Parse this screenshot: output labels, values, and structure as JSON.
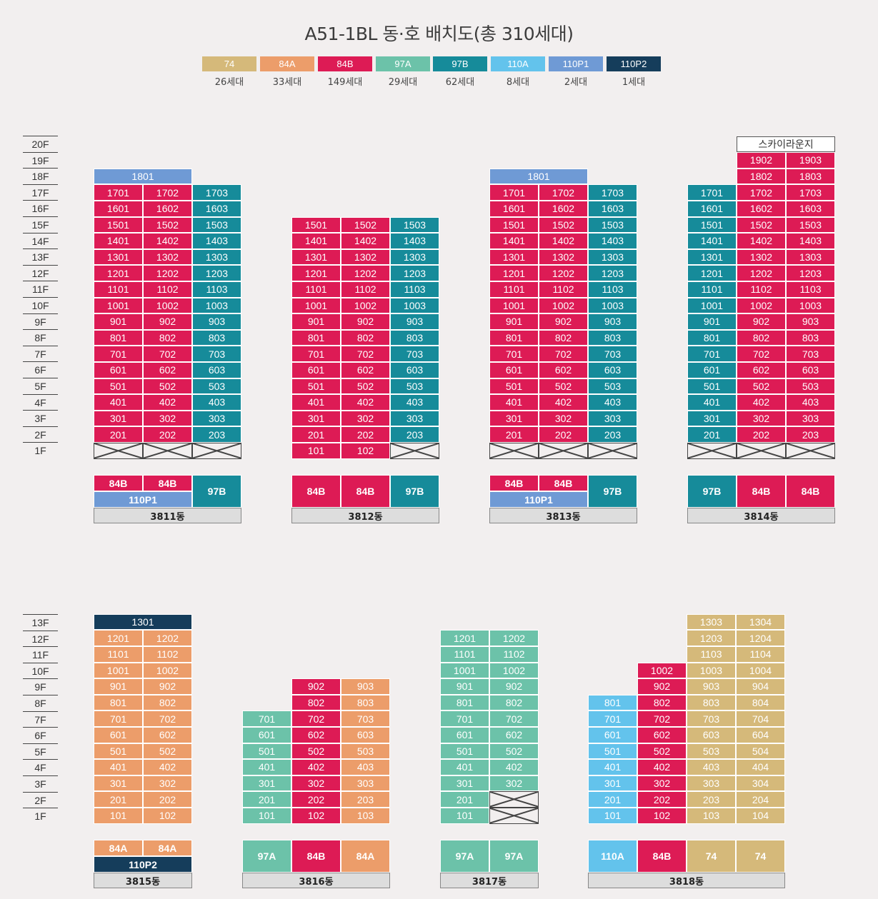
{
  "title": "A51-1BL 동·호 배치도(총 310세대)",
  "colors": {
    "74": "#d5b97a",
    "84A": "#ec9d6a",
    "84B": "#dd1b55",
    "97A": "#6cc2a9",
    "97B": "#168b9a",
    "110A": "#63c3ec",
    "110P1": "#6f9ad5",
    "110P2": "#153d5b"
  },
  "legend": [
    {
      "type": "74",
      "count": "26세대"
    },
    {
      "type": "84A",
      "count": "33세대"
    },
    {
      "type": "84B",
      "count": "149세대"
    },
    {
      "type": "97A",
      "count": "29세대"
    },
    {
      "type": "97B",
      "count": "62세대"
    },
    {
      "type": "110A",
      "count": "8세대"
    },
    {
      "type": "110P1",
      "count": "2세대"
    },
    {
      "type": "110P2",
      "count": "1세대"
    }
  ],
  "floor_labels_top": [
    "20F",
    "19F",
    "18F",
    "17F",
    "16F",
    "15F",
    "14F",
    "13F",
    "12F",
    "11F",
    "10F",
    "9F",
    "8F",
    "7F",
    "6F",
    "5F",
    "4F",
    "3F",
    "2F",
    "1F"
  ],
  "floor_labels_bottom": [
    "13F",
    "12F",
    "11F",
    "10F",
    "9F",
    "8F",
    "7F",
    "6F",
    "5F",
    "4F",
    "3F",
    "2F",
    "1F"
  ],
  "buildings": [
    {
      "name": "3811동",
      "row": "top",
      "columns": [
        {
          "line": "01",
          "type": "84B",
          "floors": [
            1,
            17
          ],
          "empty": [
            1
          ]
        },
        {
          "line": "02",
          "type": "84B",
          "floors": [
            1,
            17
          ],
          "empty": [
            1
          ]
        },
        {
          "line": "03",
          "type": "97B",
          "floors": [
            1,
            17
          ],
          "empty": [
            1
          ]
        }
      ],
      "penthouse": {
        "label": "1801",
        "type": "110P1"
      },
      "legend_top": [
        "84B",
        "84B"
      ],
      "legend_bottom": "110P1",
      "legend_right": "97B"
    },
    {
      "name": "3812동",
      "row": "top",
      "columns": [
        {
          "line": "01",
          "type": "84B",
          "floors": [
            1,
            15
          ],
          "empty": []
        },
        {
          "line": "02",
          "type": "84B",
          "floors": [
            1,
            15
          ],
          "empty": []
        },
        {
          "line": "03",
          "type": "97B",
          "floors": [
            1,
            15
          ],
          "empty": [
            1
          ]
        }
      ],
      "legend_types": [
        "84B",
        "84B",
        "97B"
      ]
    },
    {
      "name": "3813동",
      "row": "top",
      "columns": [
        {
          "line": "01",
          "type": "84B",
          "floors": [
            1,
            17
          ],
          "empty": [
            1
          ]
        },
        {
          "line": "02",
          "type": "84B",
          "floors": [
            1,
            17
          ],
          "empty": [
            1
          ]
        },
        {
          "line": "03",
          "type": "97B",
          "floors": [
            1,
            17
          ],
          "empty": [
            1
          ]
        }
      ],
      "penthouse": {
        "label": "1801",
        "type": "110P1"
      },
      "legend_top": [
        "84B",
        "84B"
      ],
      "legend_bottom": "110P1",
      "legend_right": "97B"
    },
    {
      "name": "3814동",
      "row": "top",
      "columns": [
        {
          "line": "01",
          "type": "97B",
          "floors": [
            1,
            17
          ],
          "empty": [
            1
          ]
        },
        {
          "line": "02",
          "type": "84B",
          "floors": [
            1,
            19
          ],
          "empty": [
            1
          ]
        },
        {
          "line": "03",
          "type": "84B",
          "floors": [
            1,
            19
          ],
          "empty": [
            1
          ]
        }
      ],
      "lounge": "스카이라운지",
      "legend_types": [
        "97B",
        "84B",
        "84B"
      ]
    },
    {
      "name": "3815동",
      "row": "bottom",
      "columns": [
        {
          "line": "01",
          "type": "84A",
          "floors": [
            1,
            12
          ],
          "empty": []
        },
        {
          "line": "02",
          "type": "84A",
          "floors": [
            1,
            12
          ],
          "empty": []
        }
      ],
      "penthouse": {
        "label": "1301",
        "type": "110P2"
      },
      "legend_top": [
        "84A",
        "84A"
      ],
      "legend_bottom": "110P2"
    },
    {
      "name": "3816동",
      "row": "bottom",
      "columns": [
        {
          "line": "01",
          "type": "97A",
          "floors": [
            1,
            7
          ],
          "empty": []
        },
        {
          "line": "02",
          "type": "84B",
          "floors": [
            1,
            9
          ],
          "empty": []
        },
        {
          "line": "03",
          "type": "84A",
          "floors": [
            1,
            9
          ],
          "empty": []
        }
      ],
      "legend_types": [
        "97A",
        "84B",
        "84A"
      ]
    },
    {
      "name": "3817동",
      "row": "bottom",
      "columns": [
        {
          "line": "01",
          "type": "97A",
          "floors": [
            1,
            12
          ],
          "empty": []
        },
        {
          "line": "02",
          "type": "97A",
          "floors": [
            1,
            12
          ],
          "empty": [
            1,
            2
          ]
        }
      ],
      "legend_types": [
        "97A",
        "97A"
      ]
    },
    {
      "name": "3818동",
      "row": "bottom",
      "columns": [
        {
          "line": "01",
          "type": "110A",
          "floors": [
            1,
            8
          ],
          "empty": []
        },
        {
          "line": "02",
          "type": "84B",
          "floors": [
            1,
            10
          ],
          "empty": []
        },
        {
          "line": "03",
          "type": "74",
          "floors": [
            1,
            13
          ],
          "empty": []
        },
        {
          "line": "04",
          "type": "74",
          "floors": [
            1,
            13
          ],
          "empty": []
        }
      ],
      "legend_types": [
        "110A",
        "84B",
        "74",
        "74"
      ]
    }
  ]
}
